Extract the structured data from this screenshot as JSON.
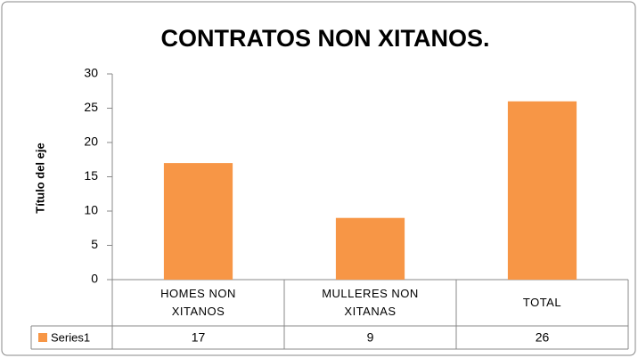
{
  "chart_data": {
    "type": "bar",
    "title": "CONTRATOS NON XITANOS.",
    "y_axis_label": "Título del eje",
    "categories": [
      "HOMES NON XITANOS",
      "MULLERES NON XITANAS",
      "TOTAL"
    ],
    "series": [
      {
        "name": "Series1",
        "color": "#f79646",
        "values": [
          17,
          9,
          26
        ]
      }
    ],
    "ylim": [
      0,
      30
    ],
    "yticks": [
      0,
      5,
      10,
      15,
      20,
      25,
      30
    ],
    "grid": false,
    "data_table": true
  }
}
